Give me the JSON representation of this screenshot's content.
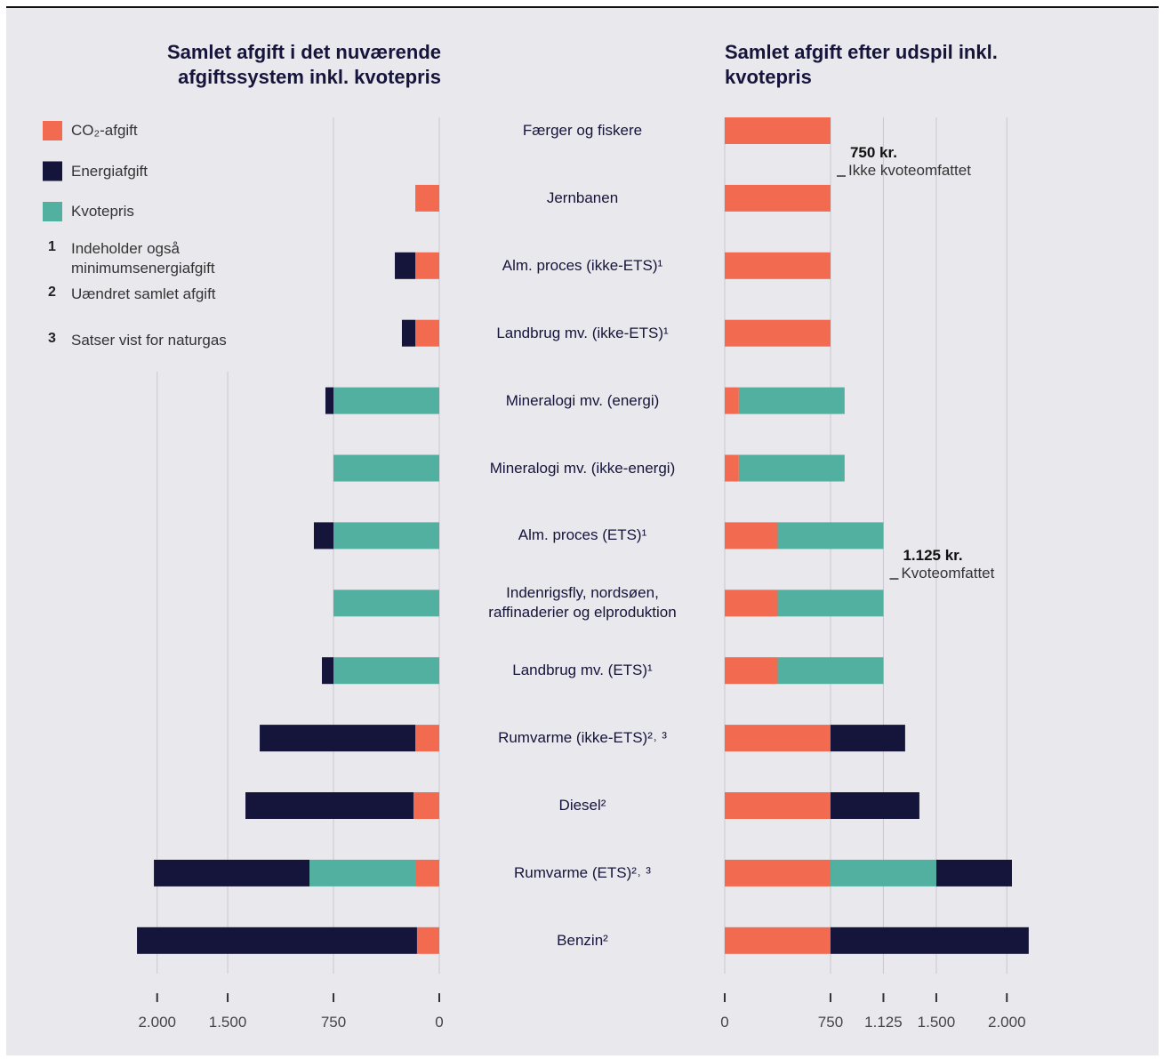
{
  "chart_data": [
    {
      "type": "bar",
      "orientation": "horizontal",
      "stacked": true,
      "direction": "leftward",
      "title": "Samlet afgift i det nuværende afgiftssystem inkl. kvotepris",
      "categories": [
        "Færger og fiskere",
        "Jernbanen",
        "Alm. proces (ikke-ETS)¹",
        "Landbrug mv. (ikke-ETS)¹",
        "Mineralogi mv. (energi)",
        "Mineralogi mv. (ikke-energi)",
        "Alm. proces (ETS)¹",
        "Indenrigsfly, nordsøen, raffinaderier og elproduktion",
        "Landbrug mv. (ETS)¹",
        "Rumvarme (ikke-ETS)²˒ ³",
        "Diesel²",
        "Rumvarme (ETS)²˒ ³",
        "Benzin²"
      ],
      "series": [
        {
          "name": "CO₂-afgift",
          "color": "#f26a50",
          "values": [
            0,
            170,
            170,
            170,
            0,
            0,
            0,
            0,
            0,
            170,
            183,
            164,
            158
          ]
        },
        {
          "name": "Kvotepris",
          "color": "#52b0a0",
          "values": [
            0,
            0,
            0,
            0,
            750,
            750,
            750,
            750,
            750,
            0,
            0,
            756,
            0
          ]
        },
        {
          "name": "Energiafgift",
          "color": "#15143a",
          "values": [
            0,
            0,
            145,
            95,
            57,
            0,
            139,
            0,
            82,
            1103,
            1191,
            1103,
            1985
          ]
        }
      ],
      "legend_order": [
        0,
        2,
        1
      ],
      "notes": [
        {
          "number": "1",
          "text": "Indeholder også minimumsenergiafgift"
        },
        {
          "number": "2",
          "text": "Uændret samlet afgift"
        },
        {
          "number": "3",
          "text": "Satser vist for naturgas"
        }
      ],
      "xlim": [
        0,
        2200
      ],
      "xticks": [
        {
          "value": 2000,
          "label": "2.000"
        },
        {
          "value": 1500,
          "label": "1.500"
        },
        750,
        0
      ],
      "grid": true
    },
    {
      "type": "bar",
      "orientation": "horizontal",
      "stacked": true,
      "direction": "rightward",
      "title": "Samlet afgift efter udspil inkl. kvotepris",
      "series": [
        {
          "color": "#f26a50",
          "values": [
            750,
            750,
            750,
            750,
            100,
            100,
            375,
            375,
            375,
            750,
            750,
            750,
            750
          ]
        },
        {
          "color": "#52b0a0",
          "values": [
            0,
            0,
            0,
            0,
            750,
            750,
            750,
            750,
            750,
            0,
            0,
            750,
            0
          ]
        },
        {
          "color": "#15143a",
          "values": [
            0,
            0,
            0,
            0,
            0,
            0,
            0,
            0,
            0,
            529,
            630,
            536,
            1405
          ]
        }
      ],
      "annotations": [
        {
          "value": 750,
          "label": "750 kr.",
          "text": "Ikke kvoteomfattet"
        },
        {
          "value": 1125,
          "label": "1.125 kr.",
          "text": "Kvoteomfattet"
        }
      ],
      "xlim": [
        0,
        2200
      ],
      "xticks": [
        0,
        750,
        {
          "value": 1125,
          "label": "1.125"
        },
        {
          "value": 1500,
          "label": "1.500"
        },
        {
          "value": 2000,
          "label": "2.000"
        }
      ],
      "grid": true
    }
  ]
}
